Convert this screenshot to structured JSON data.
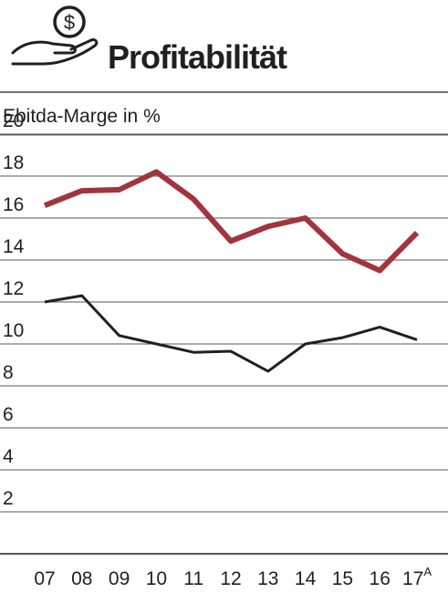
{
  "header": {
    "title": "Profitabilität",
    "icon": "hand-holding-dollar-icon"
  },
  "chart_data": {
    "type": "line",
    "title": "Profitabilität",
    "ylabel": "Ebitda-Marge in %",
    "xlabel": "",
    "categories": [
      "07",
      "08",
      "09",
      "10",
      "11",
      "12",
      "13",
      "14",
      "15",
      "16",
      "17"
    ],
    "last_category_footnote": "A",
    "ylim": [
      0,
      22
    ],
    "yticks": [
      2,
      4,
      6,
      8,
      10,
      12,
      14,
      16,
      18,
      20
    ],
    "grid": true,
    "series": [
      {
        "color": "#a3343b",
        "values": [
          16.6,
          17.3,
          17.35,
          18.2,
          16.9,
          14.9,
          15.6,
          16.0,
          14.3,
          13.5,
          15.3
        ]
      },
      {
        "color": "#231f20",
        "values": [
          12.0,
          12.3,
          10.4,
          10.0,
          9.6,
          9.65,
          8.7,
          10.0,
          10.3,
          10.8,
          10.2
        ]
      }
    ]
  }
}
